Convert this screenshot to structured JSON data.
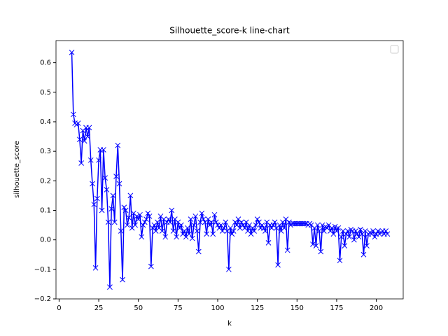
{
  "chart_data": {
    "type": "line",
    "title": "Silhouette_score-k line-chart",
    "x_label": "k",
    "y_label": "silhouette_score",
    "x": [
      8,
      9,
      10,
      11,
      12,
      13,
      14,
      15,
      16,
      17,
      18,
      19,
      20,
      21,
      22,
      23,
      24,
      25,
      26,
      27,
      28,
      29,
      30,
      31,
      32,
      33,
      34,
      35,
      36,
      37,
      38,
      39,
      40,
      41,
      42,
      43,
      44,
      45,
      46,
      47,
      48,
      49,
      50,
      51,
      52,
      53,
      54,
      55,
      56,
      57,
      58,
      59,
      60,
      61,
      62,
      63,
      64,
      65,
      66,
      67,
      68,
      69,
      70,
      71,
      72,
      73,
      74,
      75,
      76,
      77,
      78,
      79,
      80,
      81,
      82,
      83,
      84,
      85,
      86,
      87,
      88,
      89,
      90,
      91,
      92,
      93,
      94,
      95,
      96,
      97,
      98,
      99,
      100,
      101,
      102,
      103,
      104,
      105,
      106,
      107,
      108,
      109,
      110,
      111,
      112,
      113,
      114,
      115,
      116,
      117,
      118,
      119,
      120,
      121,
      122,
      123,
      124,
      125,
      126,
      127,
      128,
      129,
      130,
      131,
      132,
      133,
      134,
      135,
      136,
      137,
      138,
      139,
      140,
      141,
      142,
      143,
      144,
      145,
      146,
      147,
      148,
      149,
      150,
      151,
      152,
      153,
      154,
      155,
      156,
      157,
      158,
      159,
      160,
      161,
      162,
      163,
      164,
      165,
      166,
      167,
      168,
      169,
      170,
      171,
      172,
      173,
      174,
      175,
      176,
      177,
      178,
      179,
      180,
      181,
      182,
      183,
      184,
      185,
      186,
      187,
      188,
      189,
      190,
      191,
      192,
      193,
      194,
      195,
      196,
      197,
      198,
      199,
      200,
      201,
      202,
      203,
      204,
      205,
      206,
      207
    ],
    "series": [
      {
        "color": "#0000ff",
        "marker": "x",
        "values": [
          0.635,
          0.425,
          0.395,
          0.39,
          0.395,
          0.34,
          0.26,
          0.37,
          0.335,
          0.38,
          0.35,
          0.38,
          0.27,
          0.19,
          0.12,
          -0.095,
          0.14,
          0.27,
          0.305,
          0.1,
          0.305,
          0.21,
          0.17,
          0.06,
          -0.16,
          0.105,
          0.15,
          0.06,
          0.215,
          0.32,
          0.19,
          0.03,
          -0.135,
          0.11,
          0.1,
          0.05,
          0.075,
          0.15,
          0.04,
          0.09,
          0.05,
          0.08,
          0.07,
          0.085,
          0.01,
          0.05,
          0.06,
          0.07,
          0.09,
          0.08,
          -0.09,
          0.04,
          0.05,
          0.03,
          0.06,
          0.04,
          0.08,
          0.03,
          0.07,
          0.01,
          0.06,
          0.07,
          0.06,
          0.1,
          0.03,
          0.07,
          0.01,
          0.06,
          0.04,
          0.05,
          0.02,
          0.03,
          0.01,
          0.04,
          0.02,
          0.07,
          0.005,
          0.05,
          0.08,
          0.03,
          -0.04,
          0.06,
          0.09,
          0.07,
          0.06,
          0.02,
          0.07,
          0.05,
          0.06,
          0.02,
          0.085,
          0.06,
          0.05,
          0.04,
          0.05,
          0.03,
          0.04,
          0.06,
          0.03,
          -0.1,
          0.04,
          0.02,
          0.03,
          0.06,
          0.05,
          0.07,
          0.04,
          0.06,
          0.05,
          0.04,
          0.06,
          0.03,
          0.05,
          0.02,
          0.04,
          0.03,
          0.05,
          0.07,
          0.06,
          0.04,
          0.05,
          0.04,
          0.03,
          0.06,
          -0.01,
          0.05,
          0.04,
          0.05,
          0.06,
          0.04,
          -0.085,
          0.05,
          0.03,
          0.06,
          0.04,
          0.07,
          -0.035,
          0.06,
          0.05,
          0.055,
          0.055,
          0.055,
          0.055,
          0.055,
          0.055,
          0.055,
          0.055,
          0.055,
          0.055,
          0.05,
          0.055,
          0.05,
          -0.015,
          0.04,
          -0.02,
          0.05,
          0.03,
          -0.04,
          0.05,
          0.03,
          0.045,
          0.04,
          0.05,
          0.03,
          0.04,
          0.02,
          0.045,
          0.03,
          0.04,
          -0.07,
          0.01,
          0.03,
          -0.02,
          0.02,
          0.03,
          0.01,
          0.035,
          0.03,
          0.0,
          0.03,
          0.02,
          0.01,
          0.035,
          0.02,
          -0.05,
          0.03,
          -0.02,
          0.02,
          0.025,
          0.02,
          0.03,
          0.01,
          0.02,
          0.03,
          0.02,
          0.025,
          0.03,
          0.02,
          0.03,
          0.02
        ]
      }
    ],
    "xlim": [
      -1.95,
      216.95
    ],
    "ylim": [
      -0.2,
      0.675
    ],
    "xticks": [
      0,
      25,
      50,
      75,
      100,
      125,
      150,
      175,
      200
    ],
    "yticks": [
      {
        "value": -0.2,
        "label": "−0.2"
      },
      {
        "value": -0.1,
        "label": "−0.1"
      },
      {
        "value": 0,
        "label": "0.0"
      },
      {
        "value": 0.1,
        "label": "0.1"
      },
      {
        "value": 0.2,
        "label": "0.2"
      },
      {
        "value": 0.3,
        "label": "0.3"
      },
      {
        "value": 0.4,
        "label": "0.4"
      },
      {
        "value": 0.5,
        "label": "0.5"
      },
      {
        "value": 0.6,
        "label": "0.6"
      }
    ],
    "grid": false,
    "legend": "upper right"
  }
}
